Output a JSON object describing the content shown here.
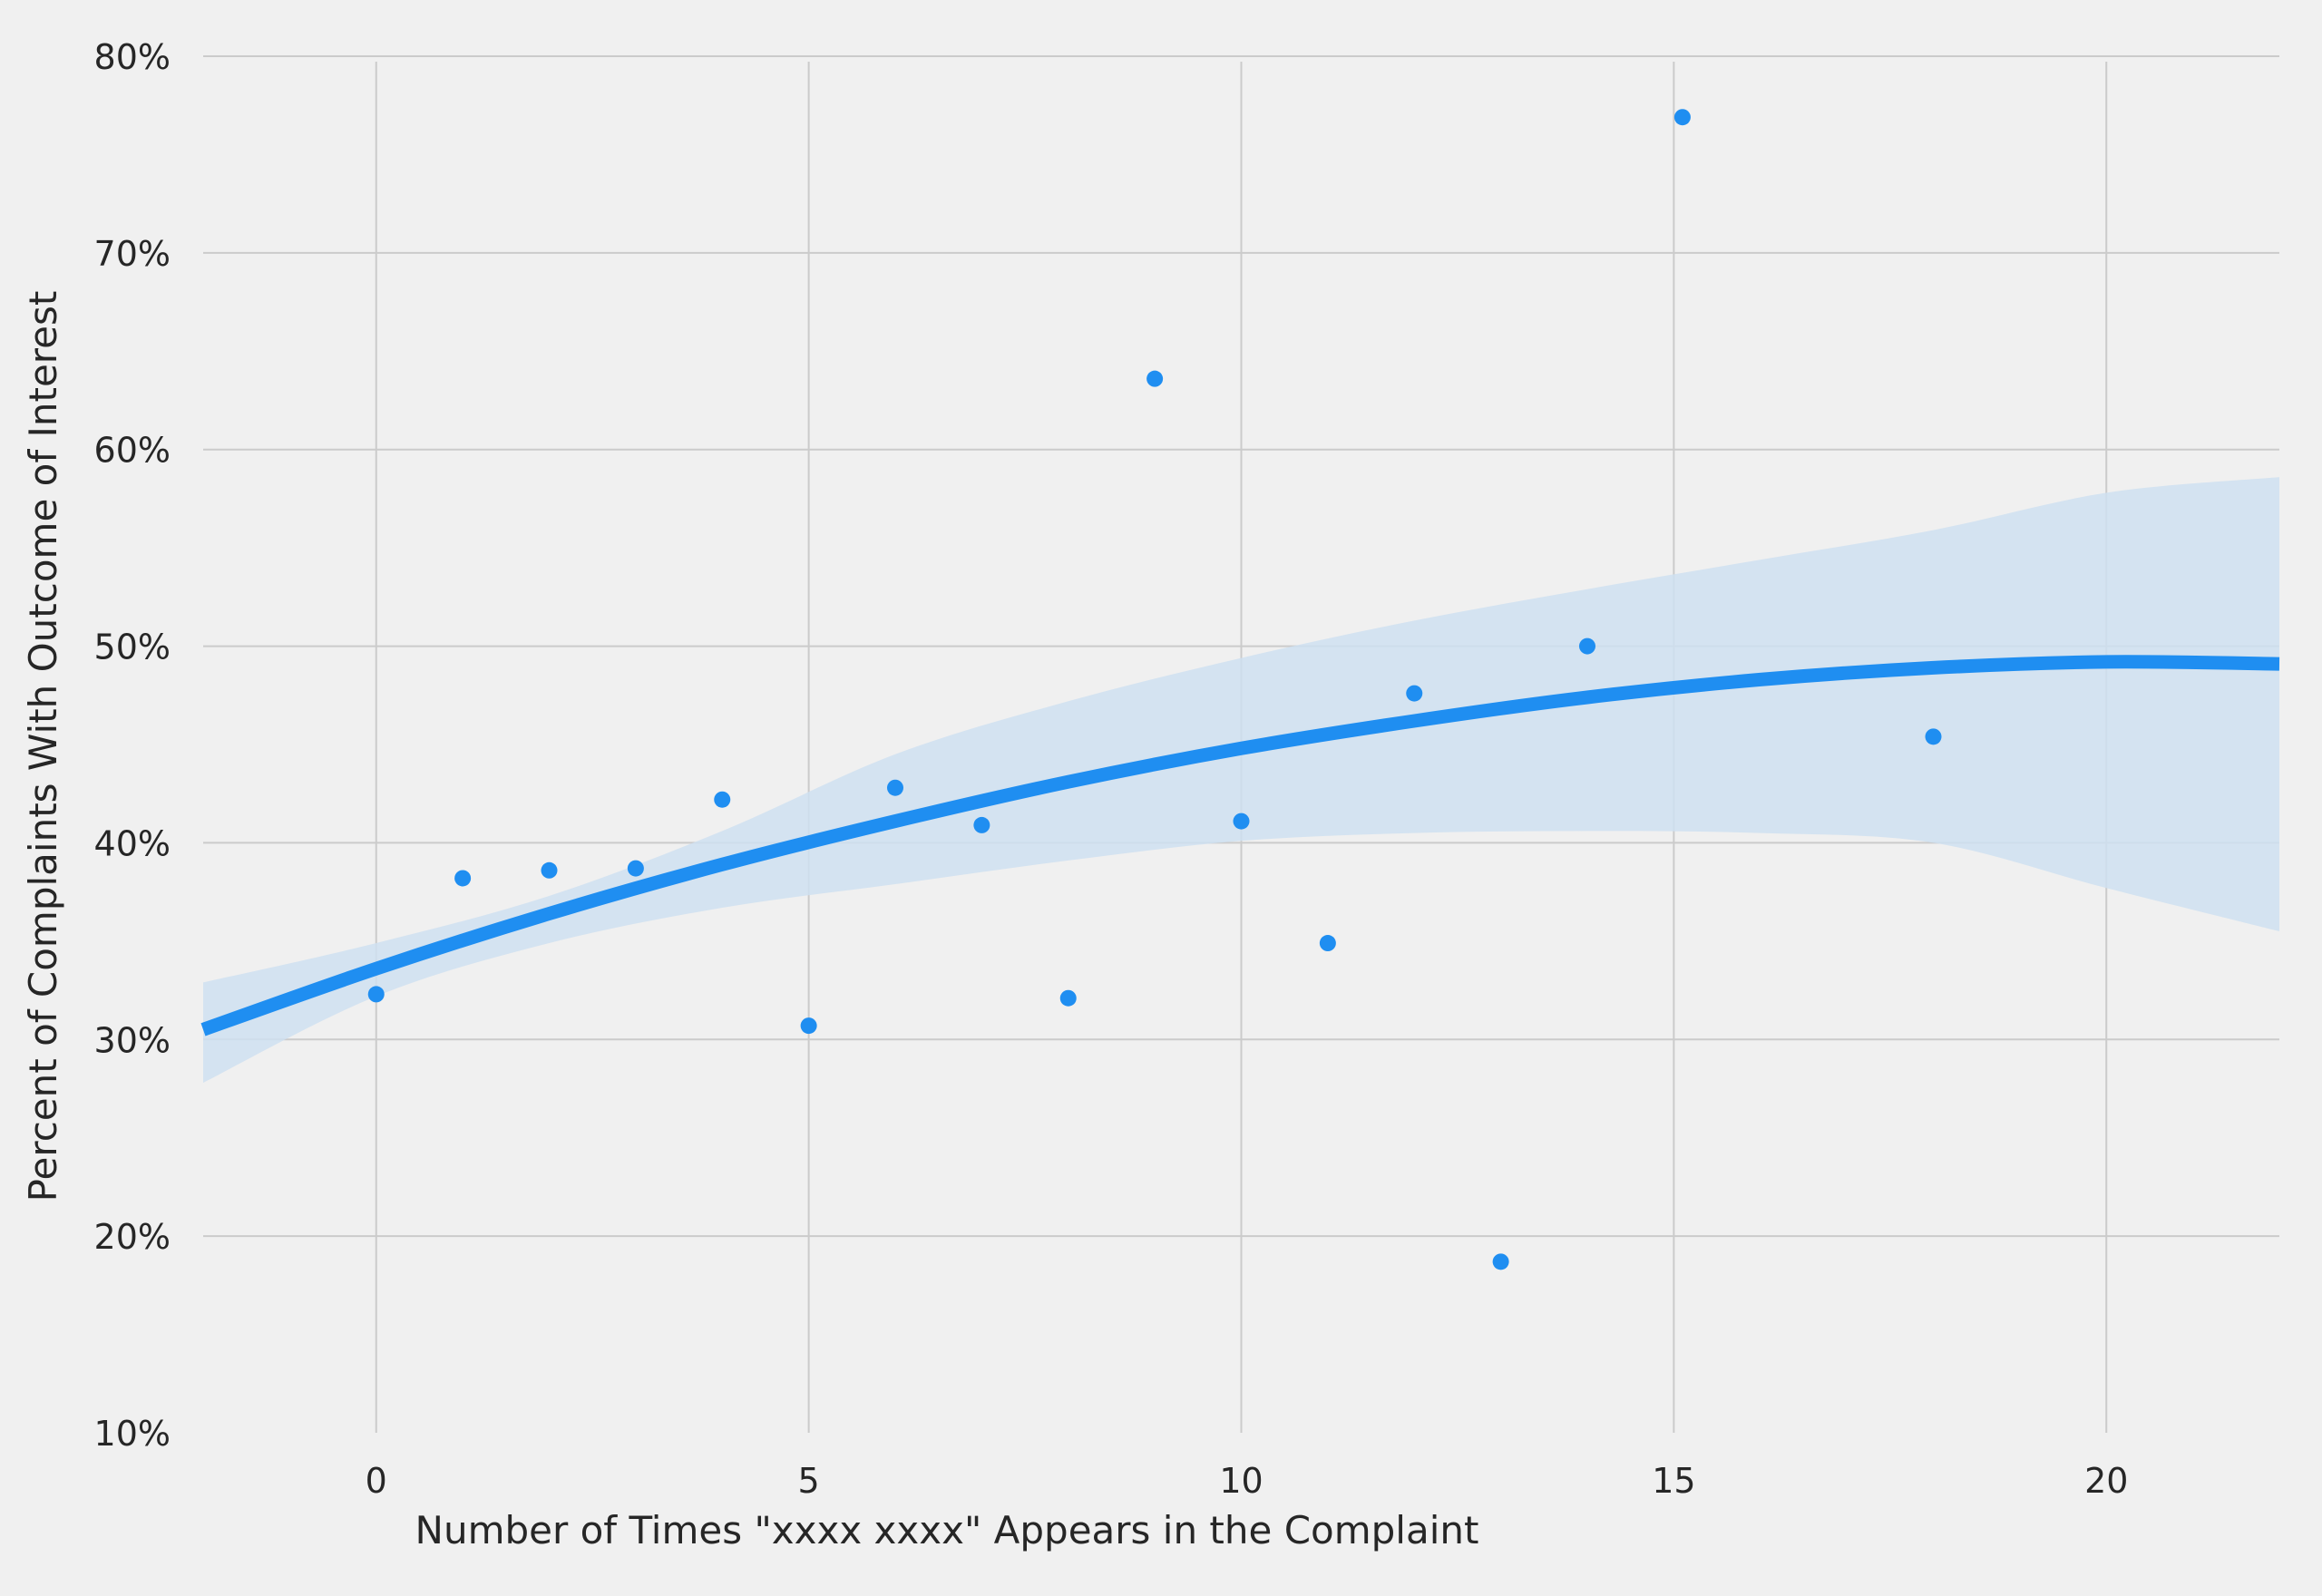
{
  "chart_data": {
    "type": "scatter",
    "title": "",
    "xlabel": "Number of Times \"xxxx xxxx\" Appears in the Complaint",
    "ylabel": "Percent of Complaints With Outcome of Interest",
    "xlim": [
      -2,
      22
    ],
    "ylim": [
      10,
      80
    ],
    "x_ticks": [
      0,
      5,
      10,
      15,
      20
    ],
    "x_tick_labels": [
      "0",
      "5",
      "10",
      "15",
      "20"
    ],
    "y_ticks": [
      10,
      20,
      30,
      40,
      50,
      60,
      70,
      80
    ],
    "y_tick_labels": [
      "10%",
      "20%",
      "30%",
      "40%",
      "50%",
      "60%",
      "70%",
      "80%"
    ],
    "grid": true,
    "colors": {
      "background": "#f0f0f0",
      "grid": "#cbcbcb",
      "points": "#1f8ef1",
      "fit_line": "#1f8ef1",
      "confidence_band": "#cfe0f1"
    },
    "series": [
      {
        "type": "scatter",
        "x": [
          0,
          1,
          2,
          3,
          4,
          5,
          6,
          7,
          8,
          9,
          10,
          11,
          12,
          13,
          14,
          15.1,
          18
        ],
        "y": [
          32.3,
          38.2,
          38.6,
          38.7,
          42.2,
          30.7,
          42.8,
          40.9,
          32.1,
          63.6,
          41.1,
          34.9,
          47.6,
          18.7,
          50.0,
          76.9,
          45.4
        ]
      },
      {
        "type": "line",
        "x": [
          -2,
          0,
          2,
          4,
          6,
          8,
          10,
          12,
          14,
          16,
          18,
          20,
          22
        ],
        "y": [
          30.5,
          33.6,
          36.4,
          38.9,
          41.1,
          43.1,
          44.8,
          46.2,
          47.4,
          48.3,
          48.9,
          49.2,
          49.1
        ]
      },
      {
        "type": "area-band",
        "x": [
          -2,
          0,
          2,
          4,
          6,
          8,
          10,
          12,
          14,
          16,
          18,
          20,
          22
        ],
        "upper": [
          32.9,
          34.9,
          37.3,
          40.6,
          44.5,
          47.2,
          49.4,
          51.3,
          52.9,
          54.4,
          55.9,
          57.8,
          58.6
        ],
        "lower": [
          27.8,
          32.2,
          34.9,
          36.7,
          37.9,
          39.1,
          40.1,
          40.5,
          40.6,
          40.5,
          40.0,
          37.7,
          35.5
        ]
      }
    ]
  }
}
